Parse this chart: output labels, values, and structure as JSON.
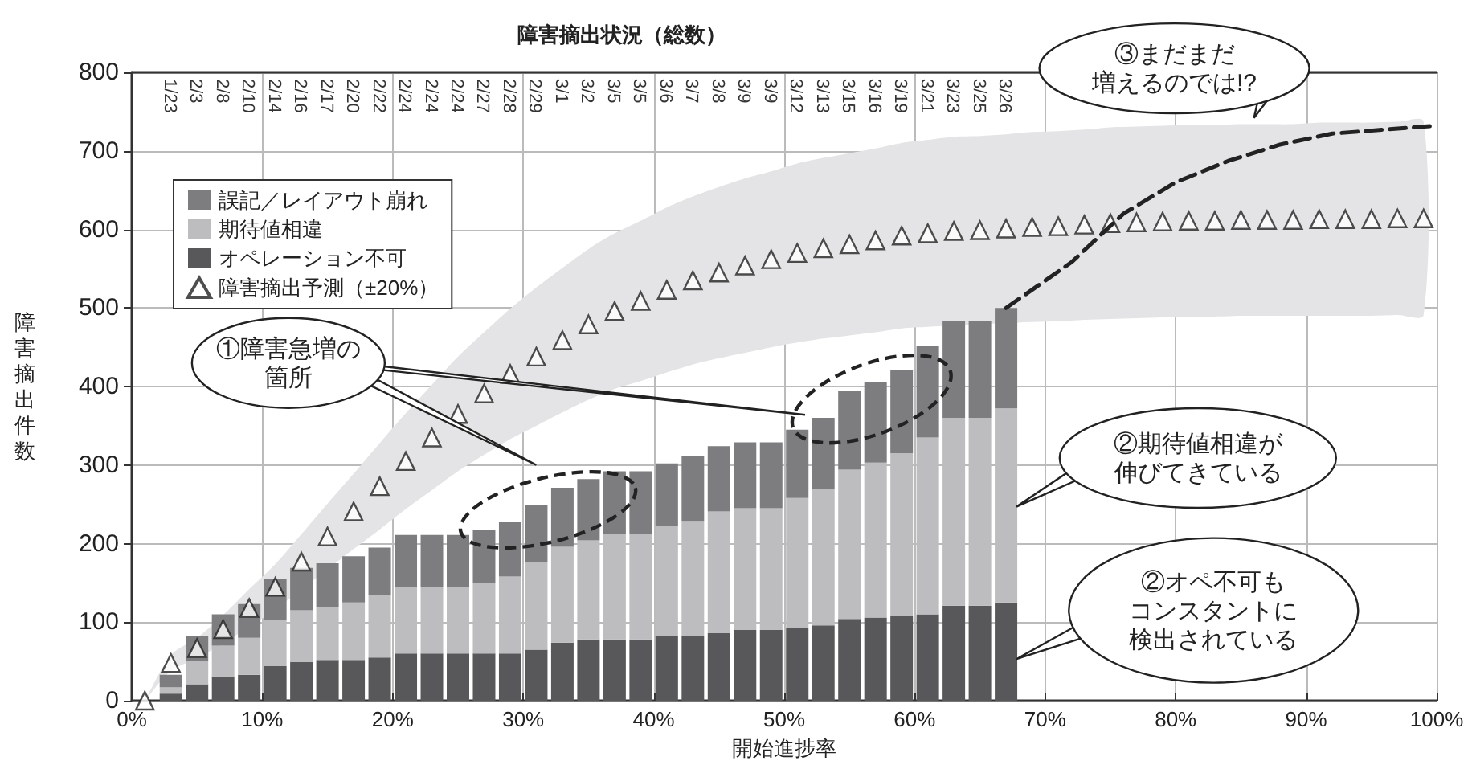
{
  "chart_data": {
    "type": "bar",
    "stacked": true,
    "title": "障害摘出状況（総数）",
    "xlabel": "開始進捗率",
    "ylabel": "障害摘出件数",
    "x": [
      3,
      5,
      7,
      9,
      11,
      13,
      15,
      17,
      19,
      21,
      23,
      25,
      27,
      29,
      31,
      33,
      35,
      37,
      39,
      41,
      43,
      45,
      47,
      49,
      51,
      53,
      55,
      57,
      59,
      61,
      63,
      65,
      67
    ],
    "xlim": [
      0,
      100
    ],
    "xticks": [
      {
        "value": 0,
        "label": "0%"
      },
      {
        "value": 10,
        "label": "10%"
      },
      {
        "value": 20,
        "label": "20%"
      },
      {
        "value": 30,
        "label": "30%"
      },
      {
        "value": 40,
        "label": "40%"
      },
      {
        "value": 50,
        "label": "50%"
      },
      {
        "value": 60,
        "label": "60%"
      },
      {
        "value": 70,
        "label": "70%"
      },
      {
        "value": 80,
        "label": "80%"
      },
      {
        "value": 90,
        "label": "90%"
      },
      {
        "value": 100,
        "label": "100%"
      }
    ],
    "ylim": [
      0,
      800
    ],
    "yticks": [
      0,
      100,
      200,
      300,
      400,
      500,
      600,
      700,
      800
    ],
    "grid": true,
    "legend": "top left",
    "series": [
      {
        "name": "オペレーション不可",
        "color": "#58585a",
        "values": [
          9,
          21,
          31,
          33,
          44,
          49,
          52,
          52,
          55,
          60,
          60,
          60,
          60,
          60,
          65,
          74,
          78,
          78,
          78,
          82,
          82,
          86,
          90,
          90,
          92,
          96,
          104,
          106,
          108,
          110,
          121,
          121,
          125
        ]
      },
      {
        "name": "期待値相違",
        "color": "#bdbdbf",
        "values": [
          8,
          30,
          39,
          47,
          59,
          66,
          67,
          73,
          79,
          85,
          85,
          85,
          90,
          98,
          111,
          122,
          126,
          134,
          134,
          140,
          146,
          155,
          155,
          155,
          166,
          174,
          190,
          197,
          207,
          225,
          239,
          239,
          247
        ]
      },
      {
        "name": "誤記／レイアウト崩れ",
        "color": "#7d7d80",
        "values": [
          16,
          31,
          40,
          43,
          52,
          54,
          56,
          59,
          61,
          66,
          66,
          66,
          67,
          69,
          73,
          75,
          78,
          80,
          80,
          80,
          83,
          83,
          84,
          84,
          87,
          90,
          101,
          102,
          106,
          117,
          123,
          123,
          128
        ]
      },
      {
        "name": "障害摘出予測（±20%）",
        "type": "scatter",
        "marker": "triangle",
        "color": "#ffffff",
        "x": [
          1,
          3,
          5,
          7,
          9,
          11,
          13,
          15,
          17,
          19,
          21,
          23,
          25,
          27,
          29,
          31,
          33,
          35,
          37,
          39,
          41,
          43,
          45,
          47,
          49,
          51,
          53,
          55,
          57,
          59,
          61,
          63,
          65,
          67,
          69,
          71,
          73,
          75,
          77,
          79,
          81,
          83,
          85,
          87,
          89,
          91,
          93,
          95,
          97,
          99
        ],
        "values": [
          0,
          48,
          67,
          91,
          118,
          145,
          177,
          209,
          241,
          273,
          305,
          335,
          365,
          391,
          416,
          438,
          459,
          479,
          496,
          509,
          523,
          535,
          545,
          554,
          562,
          570,
          576,
          581,
          586,
          592,
          595,
          598,
          599,
          601,
          603,
          604,
          606,
          608,
          609,
          610,
          611,
          611,
          612,
          612,
          612,
          613,
          613,
          613,
          614,
          614
        ],
        "lower": [
          0,
          38,
          54,
          73,
          94,
          116,
          142,
          167,
          193,
          218,
          244,
          268,
          292,
          313,
          333,
          350,
          367,
          383,
          397,
          407,
          418,
          428,
          436,
          443,
          450,
          456,
          461,
          465,
          469,
          474,
          476,
          478,
          479,
          481,
          482,
          483,
          485,
          486,
          487,
          488,
          489,
          489,
          490,
          490,
          490,
          490,
          490,
          490,
          491,
          491
        ],
        "upper": [
          0,
          58,
          80,
          109,
          142,
          174,
          212,
          251,
          289,
          328,
          366,
          402,
          438,
          469,
          499,
          526,
          551,
          575,
          595,
          611,
          628,
          642,
          654,
          665,
          674,
          684,
          691,
          697,
          703,
          710,
          714,
          718,
          719,
          721,
          724,
          725,
          727,
          730,
          731,
          732,
          733,
          733,
          734,
          734,
          734,
          736,
          736,
          736,
          737,
          737
        ]
      },
      {
        "type": "line",
        "marker": "none",
        "line_style": "dashed",
        "color": "#222222",
        "x": [
          67,
          72,
          76,
          80,
          84,
          88,
          92,
          100
        ],
        "values": [
          500,
          558,
          620,
          660,
          687,
          708,
          722,
          732
        ]
      }
    ],
    "annotations": [
      "①障害急増の箇所",
      "②期待値相違が伸びてきている",
      "②オペ不可もコンスタントに検出されている",
      "③まだまだ増えるのでは!?",
      "1/23",
      "2/3",
      "2/8",
      "2/10",
      "2/14",
      "2/16",
      "2/17",
      "2/20",
      "2/22",
      "2/24",
      "2/24",
      "2/24",
      "2/27",
      "2/28",
      "2/29",
      "3/1",
      "3/2",
      "3/5",
      "3/5",
      "3/6",
      "3/7",
      "3/8",
      "3/9",
      "3/9",
      "3/12",
      "3/13",
      "3/15",
      "3/16",
      "3/19",
      "3/21",
      "3/23",
      "3/25",
      "3/26"
    ]
  }
}
